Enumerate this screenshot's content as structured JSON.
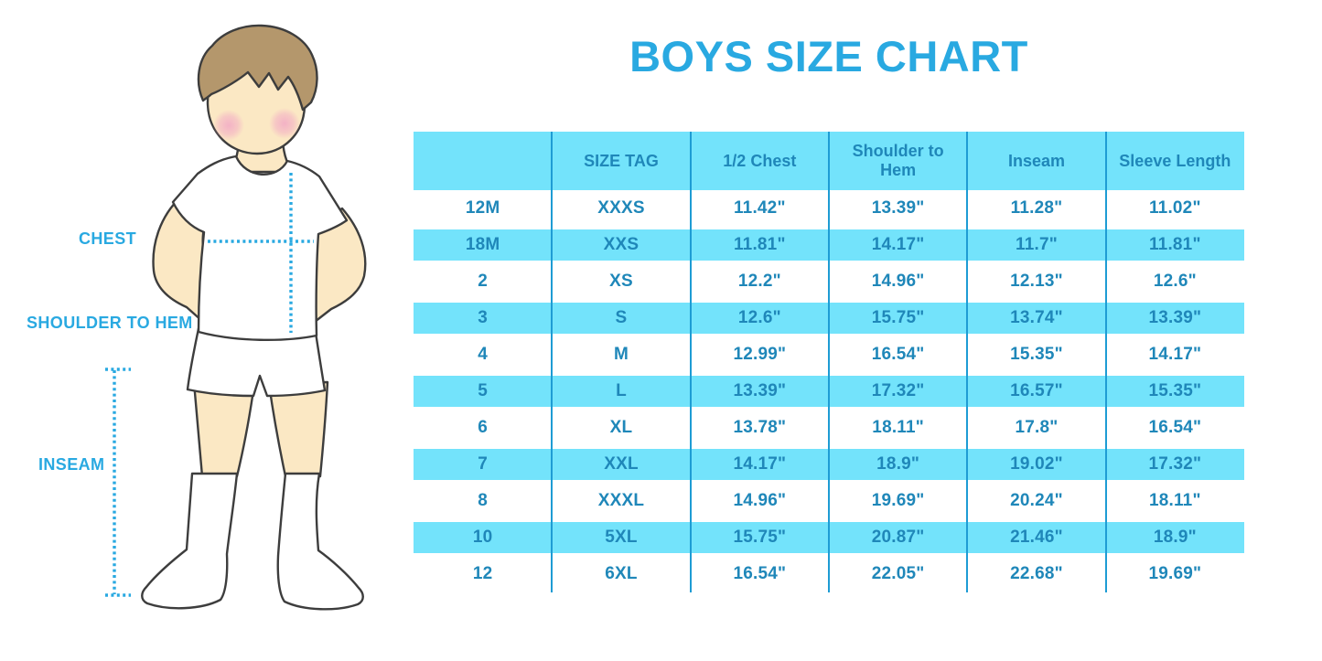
{
  "title": "BOYS SIZE CHART",
  "colors": {
    "accent": "#29A9E1",
    "band": "#73E3FB",
    "table_text": "#1F87B9",
    "divider_line": "#1E9CD4",
    "outline": "#3D3D3D",
    "skin": "#FBE8C4",
    "hair": "#B4976C",
    "cheek": "#F3AFC5"
  },
  "figure": {
    "labels": {
      "chest": "CHEST",
      "shoulder_to_hem": "SHOULDER TO HEM",
      "inseam": "INSEAM"
    }
  },
  "chart_data": {
    "type": "table",
    "title": "BOYS SIZE CHART",
    "columns": [
      "",
      "SIZE TAG",
      "1/2 Chest",
      "Shoulder to Hem",
      "Inseam",
      "Sleeve Length"
    ],
    "rows": [
      [
        "12M",
        "XXXS",
        "11.42\"",
        "13.39\"",
        "11.28\"",
        "11.02\""
      ],
      [
        "18M",
        "XXS",
        "11.81\"",
        "14.17\"",
        "11.7\"",
        "11.81\""
      ],
      [
        "2",
        "XS",
        "12.2\"",
        "14.96\"",
        "12.13\"",
        "12.6\""
      ],
      [
        "3",
        "S",
        "12.6\"",
        "15.75\"",
        "13.74\"",
        "13.39\""
      ],
      [
        "4",
        "M",
        "12.99\"",
        "16.54\"",
        "15.35\"",
        "14.17\""
      ],
      [
        "5",
        "L",
        "13.39\"",
        "17.32\"",
        "16.57\"",
        "15.35\""
      ],
      [
        "6",
        "XL",
        "13.78\"",
        "18.11\"",
        "17.8\"",
        "16.54\""
      ],
      [
        "7",
        "XXL",
        "14.17\"",
        "18.9\"",
        "19.02\"",
        "17.32\""
      ],
      [
        "8",
        "XXXL",
        "14.96\"",
        "19.69\"",
        "20.24\"",
        "18.11\""
      ],
      [
        "10",
        "5XL",
        "15.75\"",
        "20.87\"",
        "21.46\"",
        "18.9\""
      ],
      [
        "12",
        "6XL",
        "16.54\"",
        "22.05\"",
        "22.68\"",
        "19.69\""
      ]
    ],
    "row_stripe_pattern": "white / light-blue alternating, header light-blue",
    "legend_position": "none",
    "grid": "vertical column dividers only"
  }
}
